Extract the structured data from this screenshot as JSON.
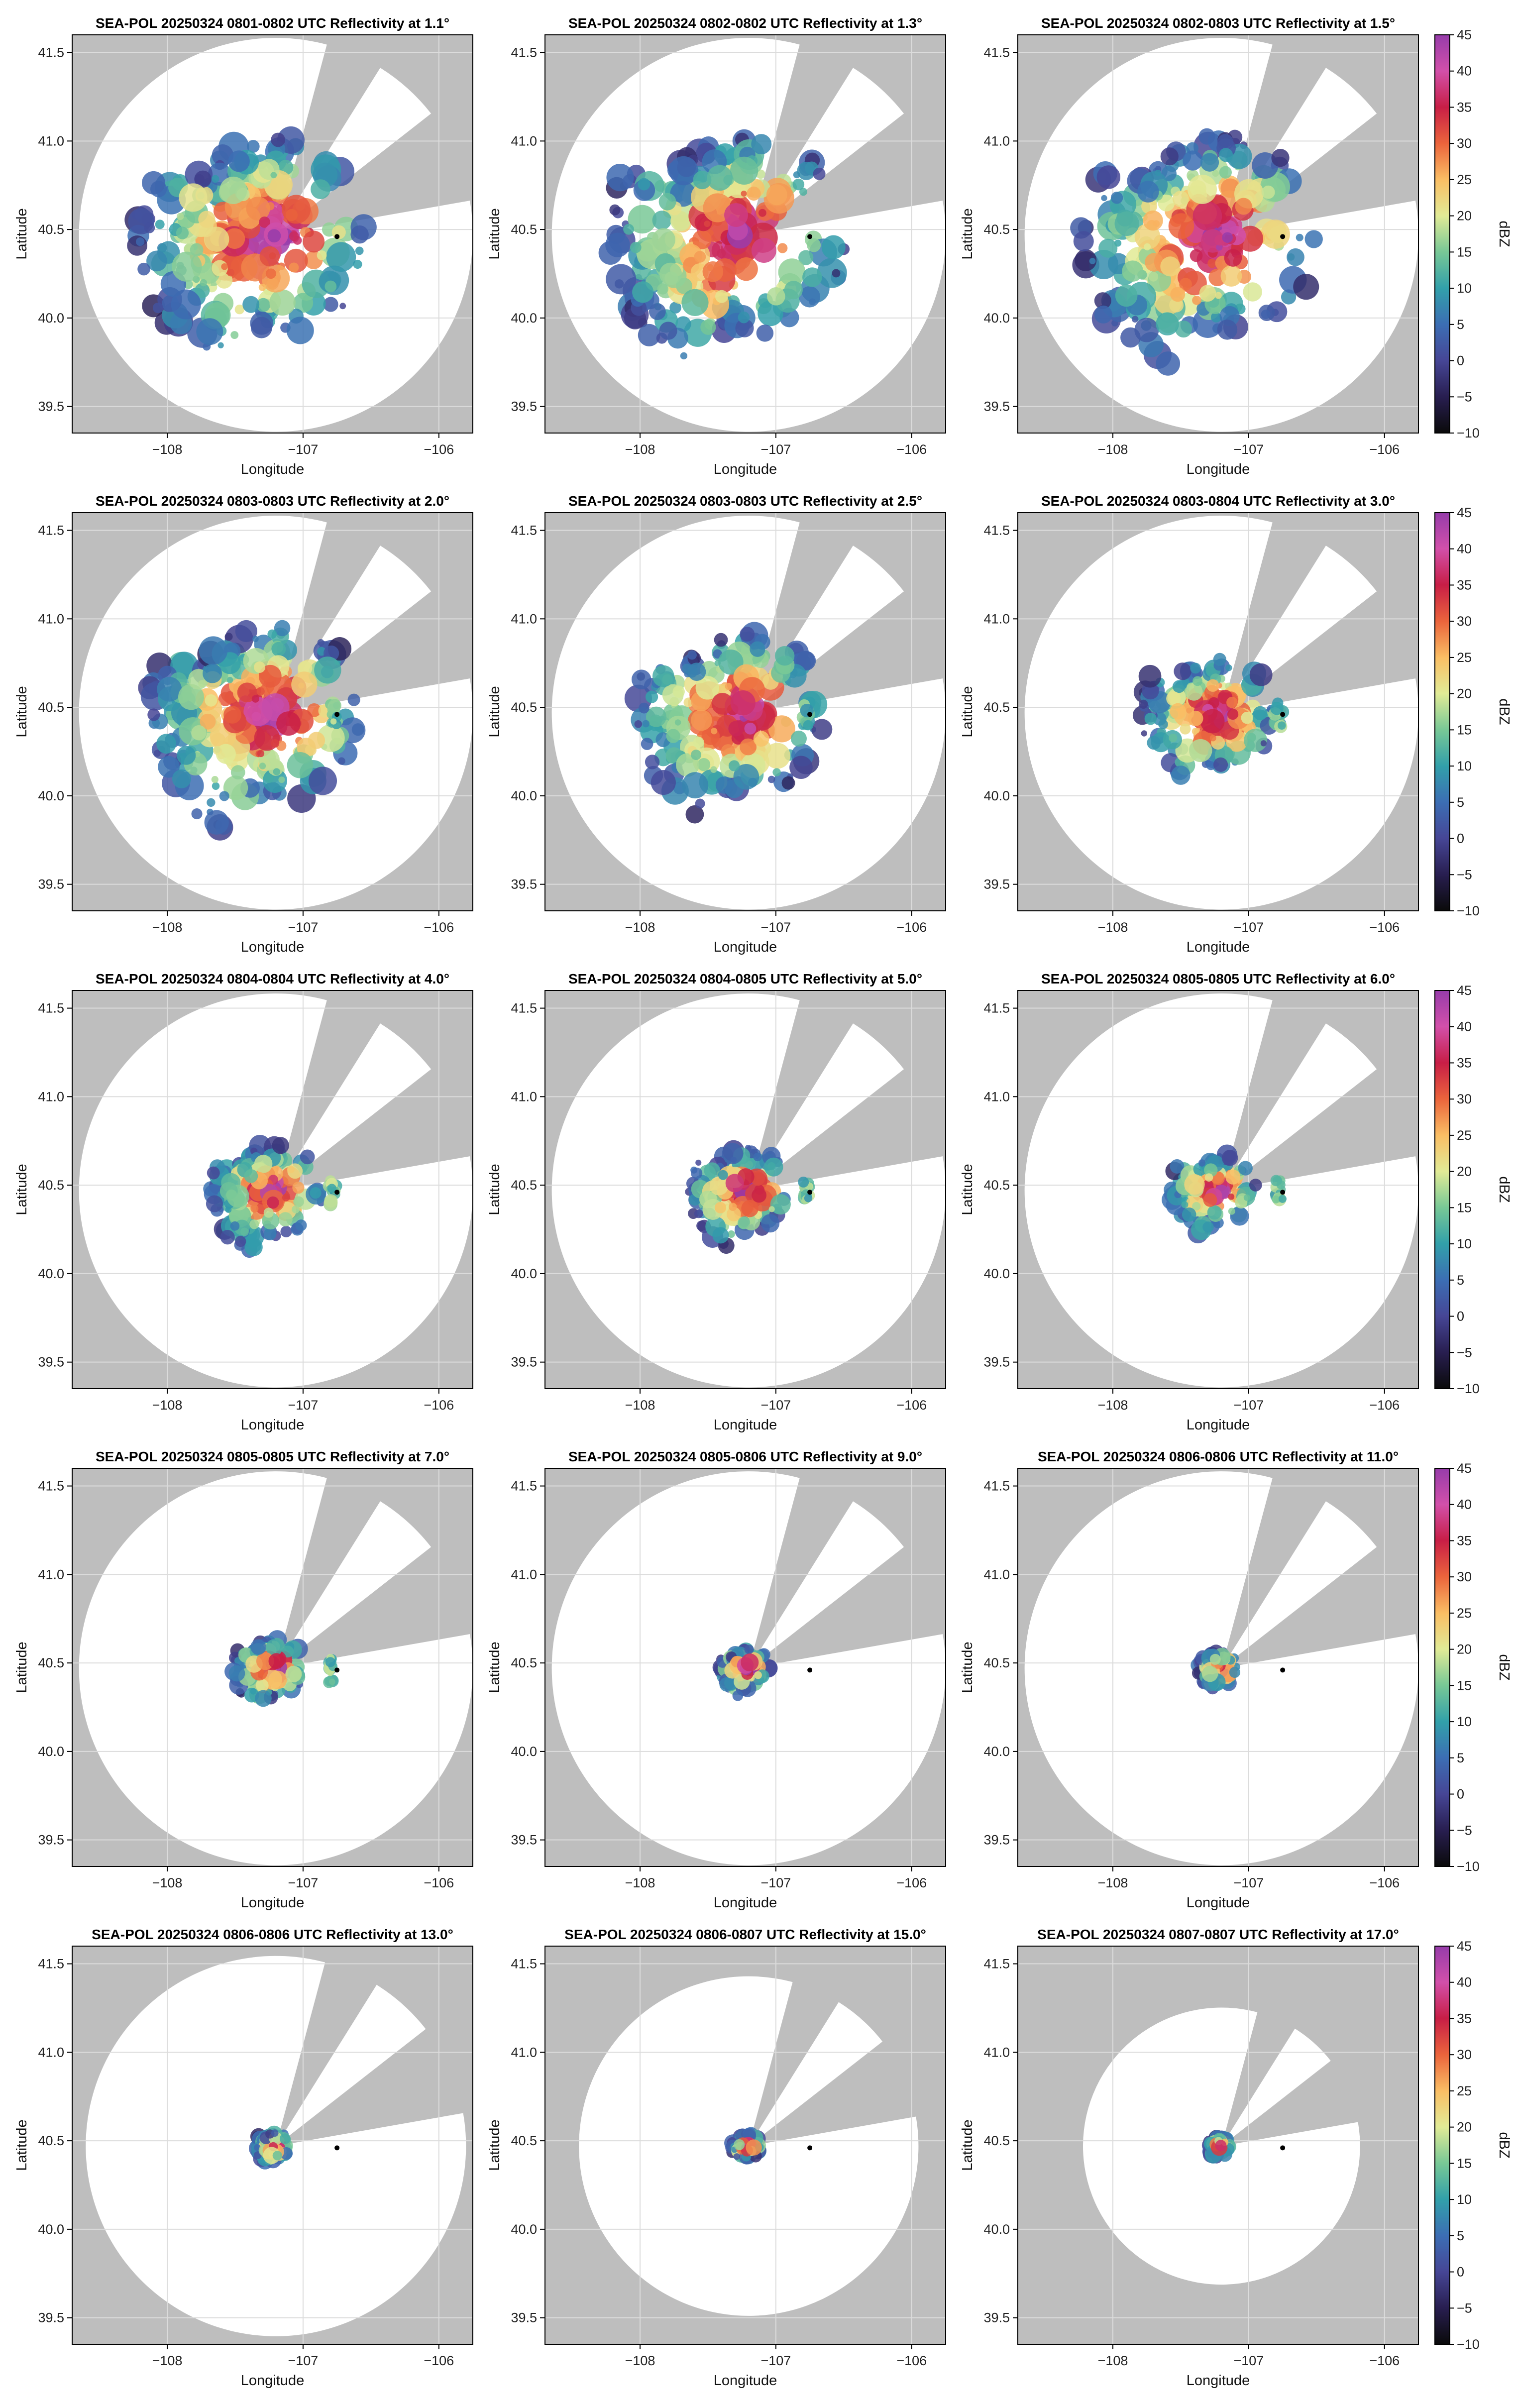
{
  "figure": {
    "rows": 5,
    "cols": 3,
    "colors": {
      "blocked_sector": "#bebebe",
      "outside_range": "#bebebe",
      "scan_disk": "#ffffff",
      "grid": "#dcdcdc"
    }
  },
  "colorbar": {
    "label": "dBZ",
    "ticks": [
      "45",
      "40",
      "35",
      "30",
      "25",
      "20",
      "15",
      "10",
      "5",
      "0",
      "−5",
      "−10"
    ],
    "range": [
      -10,
      45
    ],
    "colormap": "spectral-like (black/navy → blue → teal → green → yellow → orange → red → magenta → purple)"
  },
  "chart_data": [
    {
      "type": "heatmap",
      "title": "SEA-POL 20250324 0801-0802 UTC Reflectivity at 1.1°",
      "elevation_deg": 1.1,
      "xlabel": "Longitude",
      "ylabel": "Latitude",
      "xlim": [
        -108.7,
        -105.75
      ],
      "ylim": [
        39.35,
        41.6
      ],
      "xticks": [
        "−108",
        "−107",
        "−106"
      ],
      "yticks": [
        "41.5",
        "41.0",
        "40.5",
        "40.0",
        "39.5"
      ],
      "radar_lat": 40.47,
      "radar_lon": -107.2,
      "max_range_deg": 1.45,
      "blocked_sectors_deg": [
        [
          15,
          32
        ],
        [
          52,
          80
        ]
      ],
      "marker": {
        "lon": -106.75,
        "lat": 40.46
      },
      "echo_extent_deg": 1.05,
      "echo_coverage": "streaky low-level returns extending west-southwest"
    },
    {
      "type": "heatmap",
      "title": "SEA-POL 20250324 0802-0802 UTC Reflectivity at 1.3°",
      "elevation_deg": 1.3,
      "xlabel": "Longitude",
      "ylabel": "Latitude",
      "xlim": [
        -108.7,
        -105.75
      ],
      "ylim": [
        39.35,
        41.6
      ],
      "xticks": [
        "−108",
        "−107",
        "−106"
      ],
      "yticks": [
        "41.5",
        "41.0",
        "40.5",
        "40.0",
        "39.5"
      ],
      "radar_lat": 40.47,
      "radar_lon": -107.2,
      "max_range_deg": 1.45,
      "blocked_sectors_deg": [
        [
          15,
          32
        ],
        [
          52,
          80
        ]
      ],
      "marker": {
        "lon": -106.75,
        "lat": 40.46
      },
      "echo_extent_deg": 1.05,
      "echo_coverage": "streaky low-level returns extending west-southwest"
    },
    {
      "type": "heatmap",
      "title": "SEA-POL 20250324 0802-0803 UTC Reflectivity at 1.5°",
      "elevation_deg": 1.5,
      "xlabel": "Longitude",
      "ylabel": "Latitude",
      "xlim": [
        -108.7,
        -105.75
      ],
      "ylim": [
        39.35,
        41.6
      ],
      "xticks": [
        "−108",
        "−107",
        "−106"
      ],
      "yticks": [
        "41.5",
        "41.0",
        "40.5",
        "40.0",
        "39.5"
      ],
      "radar_lat": 40.47,
      "radar_lon": -107.2,
      "max_range_deg": 1.45,
      "blocked_sectors_deg": [
        [
          15,
          32
        ],
        [
          52,
          80
        ]
      ],
      "marker": {
        "lon": -106.75,
        "lat": 40.46
      },
      "echo_extent_deg": 1.05,
      "echo_coverage": "streaky low-level returns extending west-southwest"
    },
    {
      "type": "heatmap",
      "title": "SEA-POL 20250324 0803-0803 UTC Reflectivity at 2.0°",
      "elevation_deg": 2.0,
      "xlabel": "Longitude",
      "ylabel": "Latitude",
      "xlim": [
        -108.7,
        -105.75
      ],
      "ylim": [
        39.35,
        41.6
      ],
      "xticks": [
        "−108",
        "−107",
        "−106"
      ],
      "yticks": [
        "41.5",
        "41.0",
        "40.5",
        "40.0",
        "39.5"
      ],
      "radar_lat": 40.47,
      "radar_lon": -107.2,
      "max_range_deg": 1.45,
      "blocked_sectors_deg": [
        [
          15,
          32
        ],
        [
          52,
          80
        ]
      ],
      "marker": {
        "lon": -106.75,
        "lat": 40.46
      },
      "echo_extent_deg": 0.95,
      "echo_coverage": "broad echo mass with streaks to the west"
    },
    {
      "type": "heatmap",
      "title": "SEA-POL 20250324 0803-0803 UTC Reflectivity at 2.5°",
      "elevation_deg": 2.5,
      "xlabel": "Longitude",
      "ylabel": "Latitude",
      "xlim": [
        -108.7,
        -105.75
      ],
      "ylim": [
        39.35,
        41.6
      ],
      "xticks": [
        "−108",
        "−107",
        "−106"
      ],
      "yticks": [
        "41.5",
        "41.0",
        "40.5",
        "40.0",
        "39.5"
      ],
      "radar_lat": 40.47,
      "radar_lon": -107.2,
      "max_range_deg": 1.45,
      "blocked_sectors_deg": [
        [
          15,
          32
        ],
        [
          52,
          80
        ]
      ],
      "marker": {
        "lon": -106.75,
        "lat": 40.46
      },
      "echo_extent_deg": 0.85,
      "echo_coverage": "broad echo mass"
    },
    {
      "type": "heatmap",
      "title": "SEA-POL 20250324 0803-0804 UTC Reflectivity at 3.0°",
      "elevation_deg": 3.0,
      "xlabel": "Longitude",
      "ylabel": "Latitude",
      "xlim": [
        -108.7,
        -105.75
      ],
      "ylim": [
        39.35,
        41.6
      ],
      "xticks": [
        "−108",
        "−107",
        "−106"
      ],
      "yticks": [
        "41.5",
        "41.0",
        "40.5",
        "40.0",
        "39.5"
      ],
      "radar_lat": 40.47,
      "radar_lon": -107.2,
      "max_range_deg": 1.45,
      "blocked_sectors_deg": [
        [
          15,
          32
        ],
        [
          52,
          80
        ]
      ],
      "marker": {
        "lon": -106.75,
        "lat": 40.46
      },
      "echo_extent_deg": 0.6,
      "echo_coverage": "compact echo mass plus small cell to the east"
    },
    {
      "type": "heatmap",
      "title": "SEA-POL 20250324 0804-0804 UTC Reflectivity at 4.0°",
      "elevation_deg": 4.0,
      "xlabel": "Longitude",
      "ylabel": "Latitude",
      "xlim": [
        -108.7,
        -105.75
      ],
      "ylim": [
        39.35,
        41.6
      ],
      "xticks": [
        "−108",
        "−107",
        "−106"
      ],
      "yticks": [
        "41.5",
        "41.0",
        "40.5",
        "40.0",
        "39.5"
      ],
      "radar_lat": 40.47,
      "radar_lon": -107.2,
      "max_range_deg": 1.45,
      "blocked_sectors_deg": [
        [
          15,
          32
        ],
        [
          52,
          80
        ]
      ],
      "marker": {
        "lon": -106.75,
        "lat": 40.46
      },
      "echo_extent_deg": 0.5,
      "echo_coverage": "compact echo mass plus small cell to the east"
    },
    {
      "type": "heatmap",
      "title": "SEA-POL 20250324 0804-0805 UTC Reflectivity at 5.0°",
      "elevation_deg": 5.0,
      "xlabel": "Longitude",
      "ylabel": "Latitude",
      "xlim": [
        -108.7,
        -105.75
      ],
      "ylim": [
        39.35,
        41.6
      ],
      "xticks": [
        "−108",
        "−107",
        "−106"
      ],
      "yticks": [
        "41.5",
        "41.0",
        "40.5",
        "40.0",
        "39.5"
      ],
      "radar_lat": 40.47,
      "radar_lon": -107.2,
      "max_range_deg": 1.45,
      "blocked_sectors_deg": [
        [
          15,
          32
        ],
        [
          52,
          80
        ]
      ],
      "marker": {
        "lon": -106.75,
        "lat": 40.46
      },
      "echo_extent_deg": 0.45,
      "echo_coverage": "compact echo mass plus small cell to the east"
    },
    {
      "type": "heatmap",
      "title": "SEA-POL 20250324 0805-0805 UTC Reflectivity at 6.0°",
      "elevation_deg": 6.0,
      "xlabel": "Longitude",
      "ylabel": "Latitude",
      "xlim": [
        -108.7,
        -105.75
      ],
      "ylim": [
        39.35,
        41.6
      ],
      "xticks": [
        "−108",
        "−107",
        "−106"
      ],
      "yticks": [
        "41.5",
        "41.0",
        "40.5",
        "40.0",
        "39.5"
      ],
      "radar_lat": 40.47,
      "radar_lon": -107.2,
      "max_range_deg": 1.45,
      "blocked_sectors_deg": [
        [
          15,
          32
        ],
        [
          52,
          80
        ]
      ],
      "marker": {
        "lon": -106.75,
        "lat": 40.46
      },
      "echo_extent_deg": 0.38,
      "echo_coverage": "compact echo near radar"
    },
    {
      "type": "heatmap",
      "title": "SEA-POL 20250324 0805-0805 UTC Reflectivity at 7.0°",
      "elevation_deg": 7.0,
      "xlabel": "Longitude",
      "ylabel": "Latitude",
      "xlim": [
        -108.7,
        -105.75
      ],
      "ylim": [
        39.35,
        41.6
      ],
      "xticks": [
        "−108",
        "−107",
        "−106"
      ],
      "yticks": [
        "41.5",
        "41.0",
        "40.5",
        "40.0",
        "39.5"
      ],
      "radar_lat": 40.47,
      "radar_lon": -107.2,
      "max_range_deg": 1.45,
      "blocked_sectors_deg": [
        [
          15,
          32
        ],
        [
          52,
          80
        ]
      ],
      "marker": {
        "lon": -106.75,
        "lat": 40.46
      },
      "echo_extent_deg": 0.32,
      "echo_coverage": "compact echo near radar"
    },
    {
      "type": "heatmap",
      "title": "SEA-POL 20250324 0805-0806 UTC Reflectivity at 9.0°",
      "elevation_deg": 9.0,
      "xlabel": "Longitude",
      "ylabel": "Latitude",
      "xlim": [
        -108.7,
        -105.75
      ],
      "ylim": [
        39.35,
        41.6
      ],
      "xticks": [
        "−108",
        "−107",
        "−106"
      ],
      "yticks": [
        "41.5",
        "41.0",
        "40.5",
        "40.0",
        "39.5"
      ],
      "radar_lat": 40.47,
      "radar_lon": -107.2,
      "max_range_deg": 1.45,
      "blocked_sectors_deg": [
        [
          15,
          32
        ],
        [
          52,
          80
        ]
      ],
      "marker": {
        "lon": -106.75,
        "lat": 40.46
      },
      "echo_extent_deg": 0.22,
      "echo_coverage": "compact echo near radar"
    },
    {
      "type": "heatmap",
      "title": "SEA-POL 20250324 0806-0806 UTC Reflectivity at 11.0°",
      "elevation_deg": 11.0,
      "xlabel": "Longitude",
      "ylabel": "Latitude",
      "xlim": [
        -108.7,
        -105.75
      ],
      "ylim": [
        39.35,
        41.6
      ],
      "xticks": [
        "−108",
        "−107",
        "−106"
      ],
      "yticks": [
        "41.5",
        "41.0",
        "40.5",
        "40.0",
        "39.5"
      ],
      "radar_lat": 40.47,
      "radar_lon": -107.2,
      "max_range_deg": 1.45,
      "blocked_sectors_deg": [
        [
          15,
          32
        ],
        [
          52,
          80
        ]
      ],
      "marker": {
        "lon": -106.75,
        "lat": 40.46
      },
      "echo_extent_deg": 0.18,
      "echo_coverage": "compact echo near radar"
    },
    {
      "type": "heatmap",
      "title": "SEA-POL 20250324 0806-0806 UTC Reflectivity at 13.0°",
      "elevation_deg": 13.0,
      "xlabel": "Longitude",
      "ylabel": "Latitude",
      "xlim": [
        -108.7,
        -105.75
      ],
      "ylim": [
        39.35,
        41.6
      ],
      "xticks": [
        "−108",
        "−107",
        "−106"
      ],
      "yticks": [
        "41.5",
        "41.0",
        "40.5",
        "40.0",
        "39.5"
      ],
      "radar_lat": 40.47,
      "radar_lon": -107.2,
      "max_range_deg": 1.4,
      "blocked_sectors_deg": [
        [
          15,
          32
        ],
        [
          52,
          80
        ]
      ],
      "marker": {
        "lon": -106.75,
        "lat": 40.46
      },
      "echo_extent_deg": 0.15,
      "echo_coverage": "small echo near radar"
    },
    {
      "type": "heatmap",
      "title": "SEA-POL 20250324 0806-0807 UTC Reflectivity at 15.0°",
      "elevation_deg": 15.0,
      "xlabel": "Longitude",
      "ylabel": "Latitude",
      "xlim": [
        -108.7,
        -105.75
      ],
      "ylim": [
        39.35,
        41.6
      ],
      "xticks": [
        "−108",
        "−107",
        "−106"
      ],
      "yticks": [
        "41.5",
        "41.0",
        "40.5",
        "40.0",
        "39.5"
      ],
      "radar_lat": 40.47,
      "radar_lon": -107.2,
      "max_range_deg": 1.25,
      "blocked_sectors_deg": [
        [
          15,
          32
        ],
        [
          52,
          80
        ]
      ],
      "marker": {
        "lon": -106.75,
        "lat": 40.46
      },
      "echo_extent_deg": 0.13,
      "echo_coverage": "small echo near radar"
    },
    {
      "type": "heatmap",
      "title": "SEA-POL 20250324 0807-0807 UTC Reflectivity at 17.0°",
      "elevation_deg": 17.0,
      "xlabel": "Longitude",
      "ylabel": "Latitude",
      "xlim": [
        -108.7,
        -105.75
      ],
      "ylim": [
        39.35,
        41.6
      ],
      "xticks": [
        "−108",
        "−107",
        "−106"
      ],
      "yticks": [
        "41.5",
        "41.0",
        "40.5",
        "40.0",
        "39.5"
      ],
      "radar_lat": 40.47,
      "radar_lon": -107.2,
      "max_range_deg": 1.02,
      "blocked_sectors_deg": [
        [
          15,
          32
        ],
        [
          52,
          80
        ]
      ],
      "marker": {
        "lon": -106.75,
        "lat": 40.46
      },
      "echo_extent_deg": 0.1,
      "echo_coverage": "small echo near radar"
    }
  ]
}
